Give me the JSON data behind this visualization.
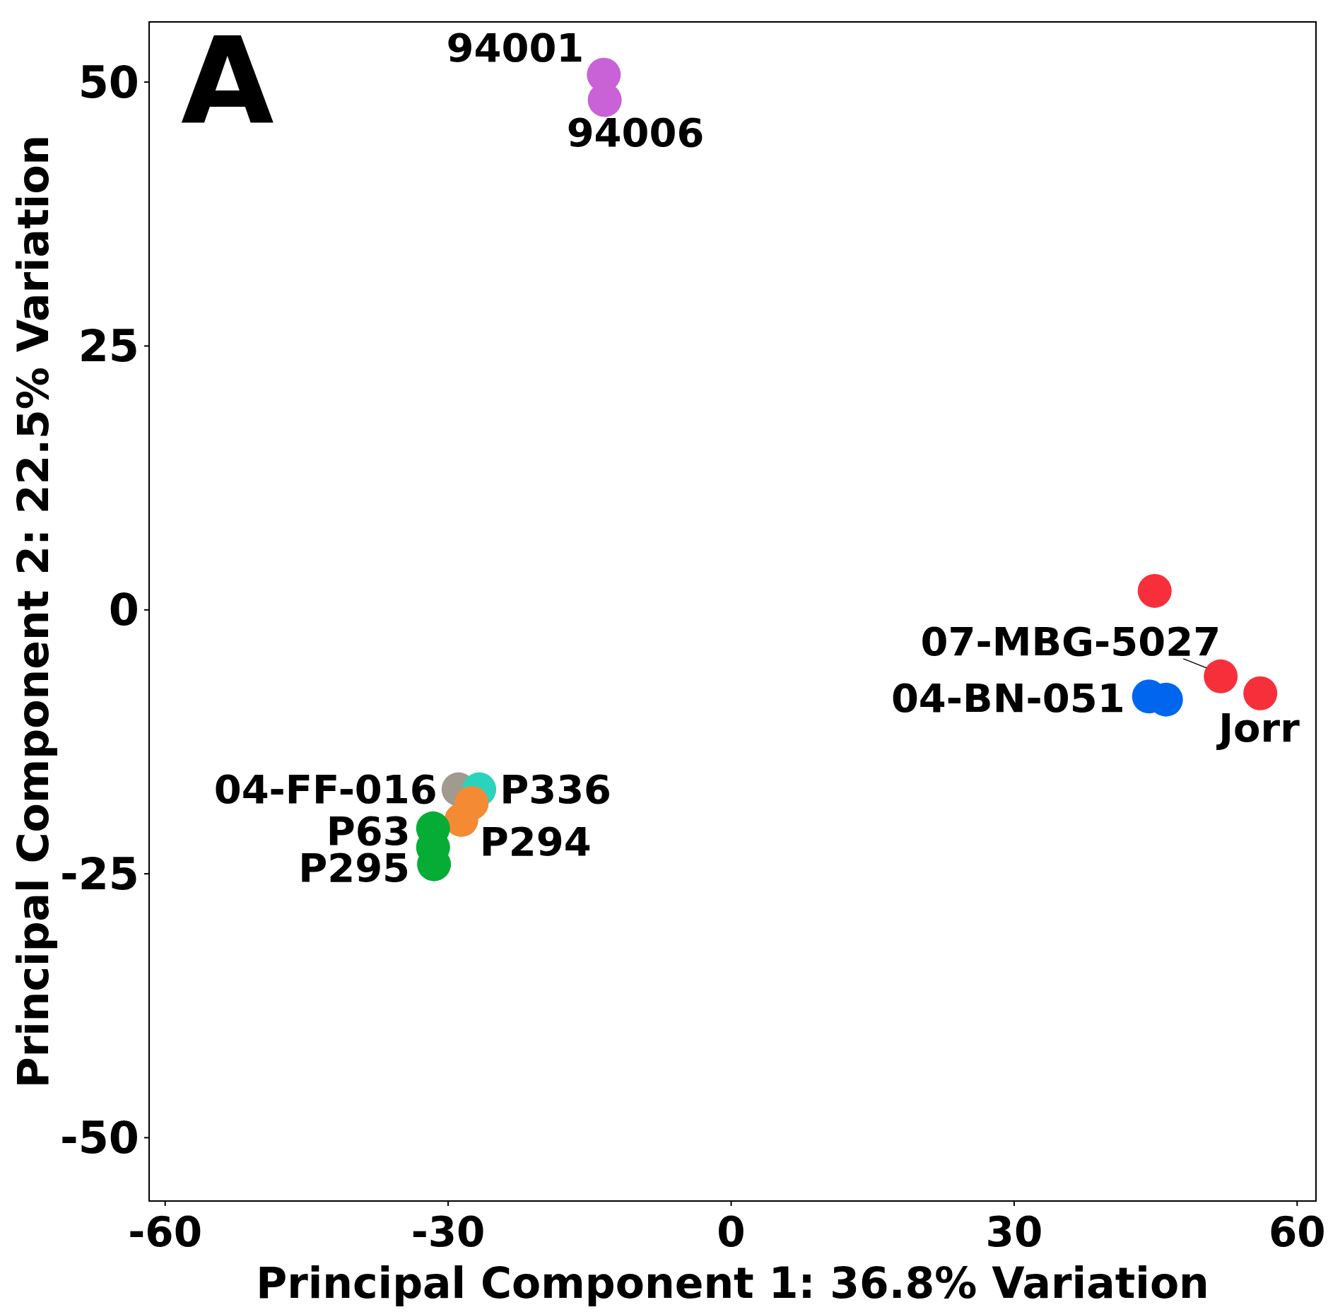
{
  "chart_data": {
    "type": "scatter",
    "xlabel": "Principal Component 1: 36.8% Variation",
    "ylabel": "Principal Component 2: 22.5% Variation",
    "xlim": [
      -61.7,
      62
    ],
    "ylim": [
      -56,
      55.7
    ],
    "xticks": [
      -60,
      -30,
      0,
      30,
      60
    ],
    "yticks": [
      -50,
      -25,
      0,
      25,
      50
    ],
    "grid": false,
    "marker": "circle",
    "series": [
      {
        "color": "#c862d6",
        "x": [
          -13.5,
          -13.4
        ],
        "values": [
          50.7,
          48.3
        ]
      },
      {
        "color": "#f72f3b",
        "x": [
          44.9,
          51.9,
          56.1
        ],
        "values": [
          1.8,
          -6.3,
          -7.9
        ]
      },
      {
        "color": "#0066ee",
        "x": [
          44.3,
          46.1
        ],
        "values": [
          -8.2,
          -8.5
        ]
      },
      {
        "color": "#a09a8f",
        "x": [
          -28.9
        ],
        "values": [
          -17.0
        ]
      },
      {
        "color": "#2ad3bc",
        "x": [
          -26.7
        ],
        "values": [
          -17.0
        ]
      },
      {
        "color": "#f48b34",
        "x": [
          -27.5,
          -28.6
        ],
        "values": [
          -18.3,
          -19.9
        ]
      },
      {
        "color": "#05ad34",
        "x": [
          -31.6,
          -31.6,
          -31.5
        ],
        "values": [
          -20.7,
          -22.5,
          -24.1
        ]
      }
    ],
    "annotations": [
      "A",
      {
        "text": "94001",
        "x": -13.5,
        "y": 50.7
      },
      {
        "text": "94006",
        "x": -13.4,
        "y": 48.3
      },
      {
        "text": "07-MBG-5027",
        "x": 51.9,
        "y": -6.3
      },
      {
        "text": "Jorr",
        "x": 56.1,
        "y": -7.9
      },
      {
        "text": "04-BN-051",
        "x": 44.3,
        "y": -8.2
      },
      {
        "text": "04-FF-016",
        "x": -28.9,
        "y": -17.0
      },
      {
        "text": "P336",
        "x": -26.7,
        "y": -17.0
      },
      {
        "text": "P294",
        "x": -28.6,
        "y": -19.9
      },
      {
        "text": "P63",
        "x": -31.6,
        "y": -20.7
      },
      {
        "text": "P295",
        "x": -31.5,
        "y": -24.1
      }
    ]
  }
}
